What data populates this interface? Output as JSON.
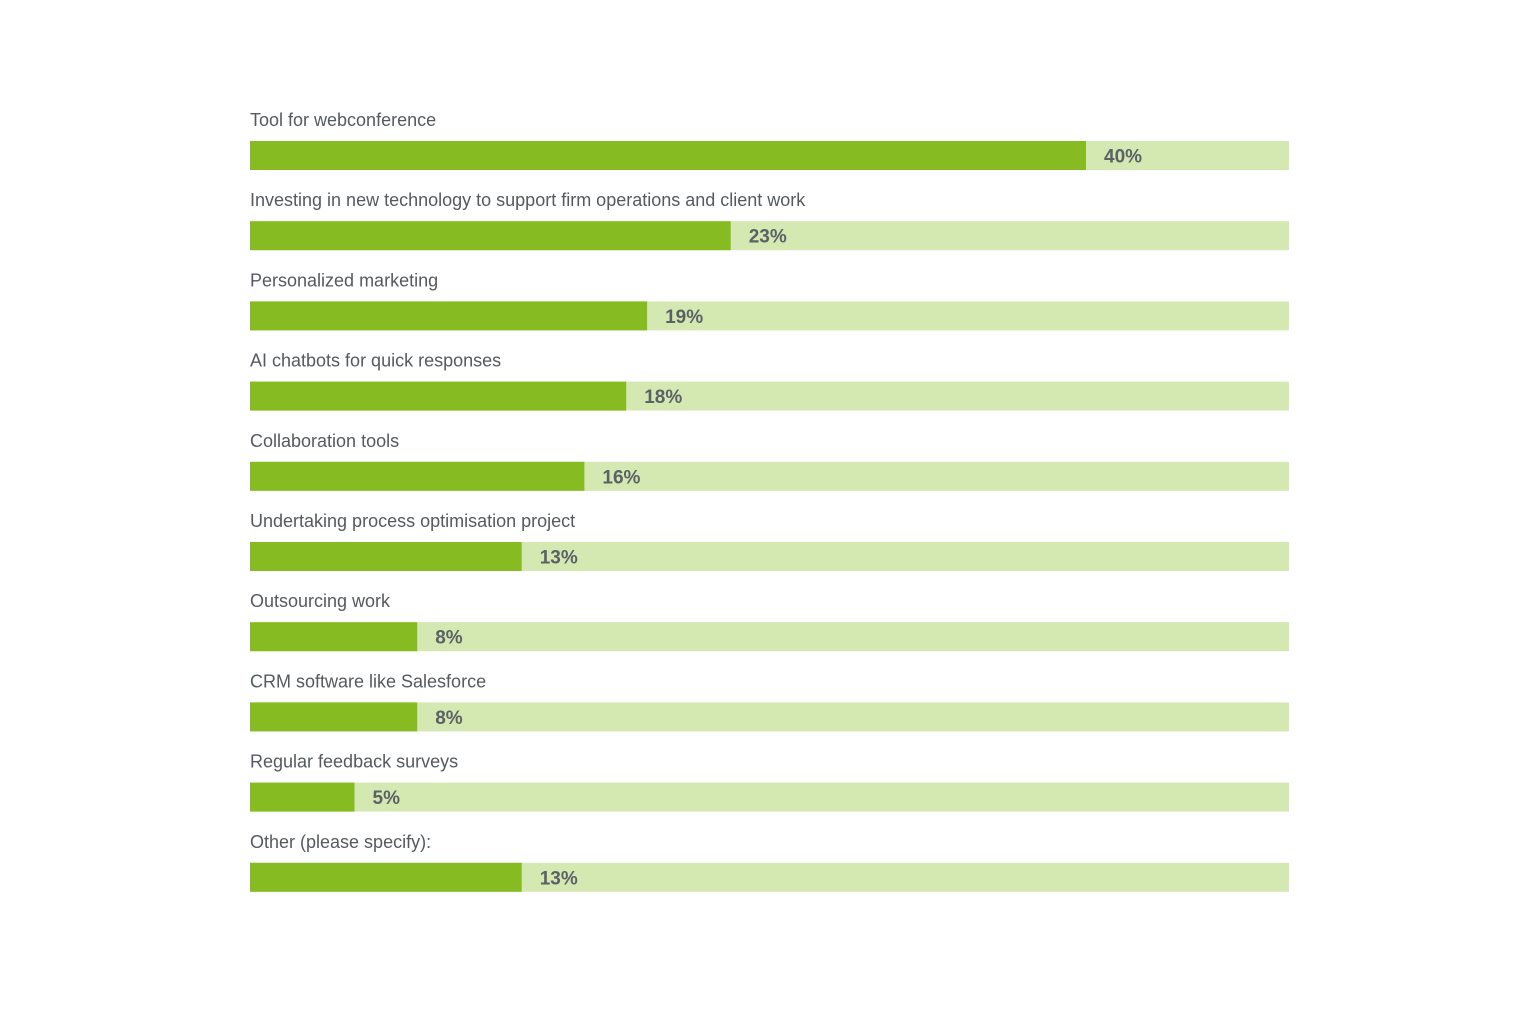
{
  "chart_data": {
    "type": "bar",
    "orientation": "horizontal",
    "title": "",
    "xlabel": "",
    "ylabel": "",
    "xlim": [
      0,
      100
    ],
    "grid": false,
    "legend": "none",
    "value_suffix": "%",
    "categories": [
      "Tool for webconference",
      "Investing in new technology to support firm operations and client work",
      "Personalized marketing",
      "AI chatbots for quick responses",
      "Collaboration tools",
      "Undertaking process optimisation project",
      "Outsourcing work",
      "CRM software like Salesforce",
      "Regular feedback surveys",
      "Other (please specify):"
    ],
    "values": [
      40,
      23,
      19,
      18,
      16,
      13,
      8,
      8,
      5,
      13
    ],
    "value_labels": [
      "40%",
      "23%",
      "19%",
      "18%",
      "16%",
      "13%",
      "8%",
      "8%",
      "5%",
      "13%"
    ],
    "colors": {
      "bar": "#86bc21",
      "track": "#d4e8b2",
      "label_text": "#555a5f",
      "value_text": "#5c6166"
    }
  }
}
